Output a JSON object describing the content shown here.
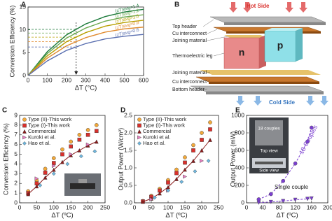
{
  "panel_labels": [
    "A",
    "B",
    "C",
    "D",
    "E"
  ],
  "chart_data": [
    {
      "type": "line",
      "xlabel": "ΔT (°C)",
      "ylabel": "Conversion Efficiency (%)",
      "x": [
        0,
        100,
        200,
        300,
        400,
        500,
        600
      ],
      "xlim": [
        0,
        600
      ],
      "xticks": [
        0,
        100,
        200,
        300,
        400,
        500,
        600
      ],
      "ylim": [
        0,
        15
      ],
      "yticks": [
        0,
        5,
        10,
        15
      ],
      "legend": "inline",
      "reference_x": 250,
      "series": [
        {
          "name": "(zT)avg=1.4",
          "color": "#1b7a3a",
          "values": [
            0,
            5.2,
            8.9,
            11.3,
            12.9,
            13.9,
            14.5
          ]
        },
        {
          "name": "(zT)avg=1.2",
          "color": "#6aa84f",
          "values": [
            0,
            4.8,
            8.2,
            10.4,
            11.9,
            12.8,
            13.3
          ]
        },
        {
          "name": "(zT)avg=1.0",
          "color": "#b8a000",
          "values": [
            0,
            4.3,
            7.4,
            9.4,
            10.8,
            11.6,
            12.1
          ]
        },
        {
          "name": "(zT)avg=0.8",
          "color": "#e08a2e",
          "values": [
            0,
            3.8,
            6.5,
            8.3,
            9.5,
            10.2,
            10.6
          ]
        },
        {
          "name": "(zT)avg=0.6",
          "color": "#5a6fb0",
          "values": [
            0,
            3.2,
            5.5,
            7.0,
            8.0,
            8.6,
            9.0
          ]
        }
      ]
    },
    {
      "type": "scatter",
      "xlabel": "ΔT (ºC)",
      "ylabel": "Conversion Efficiency (%)",
      "x": [
        25,
        50,
        75,
        100,
        125,
        150,
        175,
        200,
        225
      ],
      "xlim": [
        0,
        250
      ],
      "xticks": [
        0,
        50,
        100,
        150,
        200,
        250
      ],
      "ylim": [
        0,
        9
      ],
      "yticks": [
        0,
        1,
        2,
        3,
        4,
        5,
        6,
        7,
        8,
        9
      ],
      "legend": "upper left",
      "series": [
        {
          "name": "Type (II)-This work",
          "color": "#f2a93b",
          "marker": "circle",
          "values": [
            1.2,
            2.3,
            3.5,
            4.6,
            5.5,
            6.3,
            7.0,
            7.5,
            8.0
          ]
        },
        {
          "name": "Type (I)-This work",
          "color": "#d9302c",
          "marker": "square",
          "values": [
            1.0,
            2.0,
            3.1,
            4.1,
            5.0,
            5.8,
            6.5,
            7.0,
            7.4
          ]
        },
        {
          "name": "Commercial",
          "color": "#8b1a1a",
          "marker": "triangle",
          "line": true,
          "values": [
            0.9,
            1.7,
            2.6,
            3.4,
            4.2,
            4.9,
            5.4,
            5.9,
            6.3
          ]
        },
        {
          "name": "Kuroki et al.",
          "color": "#e87fc0",
          "marker": "triangle-right",
          "x": [
            50,
            100,
            150,
            200
          ],
          "values": [
            2.5,
            3.8,
            5.0,
            6.0
          ]
        },
        {
          "name": "Hao et al.",
          "color": "#6fb8e0",
          "marker": "diamond",
          "x": [
            60,
            100,
            140,
            180,
            220
          ],
          "values": [
            1.8,
            3.0,
            4.0,
            4.8,
            5.3
          ]
        }
      ]
    },
    {
      "type": "scatter",
      "xlabel": "ΔT (ºC)",
      "ylabel": "Output Power (W/cm²)",
      "x": [
        25,
        50,
        75,
        100,
        125,
        150,
        175,
        200,
        225
      ],
      "xlim": [
        0,
        250
      ],
      "xticks": [
        0,
        50,
        100,
        150,
        200,
        250
      ],
      "ylim": [
        0,
        2.5
      ],
      "yticks": [
        {
          "value": 0,
          "label": "0.0"
        },
        0.5,
        {
          "value": 1,
          "label": "1.0"
        },
        1.5,
        {
          "value": 2,
          "label": "2.0"
        },
        2.5
      ],
      "legend": "upper left",
      "series": [
        {
          "name": "Type (II)-This work",
          "color": "#f2a93b",
          "marker": "circle",
          "values": [
            0.05,
            0.2,
            0.4,
            0.65,
            0.95,
            1.3,
            1.65,
            2.0,
            2.3
          ]
        },
        {
          "name": "Type (I)-This work",
          "color": "#d9302c",
          "marker": "square",
          "values": [
            0.04,
            0.17,
            0.35,
            0.58,
            0.85,
            1.15,
            1.5,
            1.8,
            2.1
          ]
        },
        {
          "name": "Commercial",
          "color": "#8b1a1a",
          "marker": "triangle",
          "line": true,
          "values": [
            0.03,
            0.12,
            0.27,
            0.45,
            0.68,
            0.95,
            1.2,
            1.5,
            1.8
          ]
        },
        {
          "name": "Kuroki et al.",
          "color": "#e87fc0",
          "marker": "triangle-right",
          "x": [
            50,
            100,
            150,
            200
          ],
          "values": [
            0.1,
            0.35,
            0.75,
            1.2
          ]
        },
        {
          "name": "Hao et al.",
          "color": "#6fb8e0",
          "marker": "diamond",
          "x": [
            60,
            100,
            140,
            180,
            220
          ],
          "values": [
            0.15,
            0.35,
            0.6,
            0.9,
            1.2
          ]
        }
      ]
    },
    {
      "type": "scatter",
      "xlabel": "ΔT (ºC)",
      "ylabel": "Output Power (mW)",
      "x": [
        30,
        60,
        90,
        120,
        150,
        160
      ],
      "xlim": [
        0,
        200
      ],
      "xticks": [
        0,
        40,
        80,
        120,
        160,
        200
      ],
      "ylim": [
        0,
        1000
      ],
      "yticks": [
        0,
        200,
        400,
        600,
        800,
        1000
      ],
      "annotations": [
        "18 Couples",
        "Single couple",
        "18 couples",
        "Top view",
        "Side view"
      ],
      "series": [
        {
          "color": "#7b3fd0",
          "marker": "circle",
          "line": true,
          "dashed": true,
          "values": [
            40,
            100,
            250,
            450,
            700,
            860
          ]
        },
        {
          "color": "#7b3fd0",
          "marker": "triangle-down",
          "line": true,
          "dashed": true,
          "values": [
            2,
            10,
            20,
            35,
            45,
            50
          ]
        }
      ]
    }
  ],
  "diagram": {
    "hot_side": "Hot Side",
    "cold_side": "Cold Side",
    "n": "n",
    "p": "p",
    "labels": [
      "Top header",
      "Cu interconnect",
      "Joining material",
      "Thermoelectric leg",
      "Joining material",
      "Cu interconnect",
      "Bottom header"
    ]
  }
}
